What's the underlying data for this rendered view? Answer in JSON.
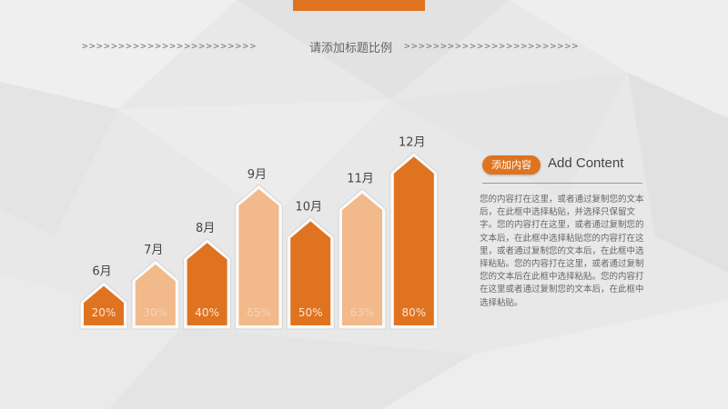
{
  "page": {
    "title": "请添加标题比例",
    "arrows_left": ">>>>>>>>>>>>>>>>>>>>>>>>",
    "arrows_right": ">>>>>>>>>>>>>>>>>>>>>>>>"
  },
  "colors": {
    "accent": "#e07320",
    "light": "#f2b98a",
    "background": "#e9e9e9"
  },
  "chart_data": {
    "type": "bar",
    "categories": [
      "6月",
      "7月",
      "8月",
      "9月",
      "10月",
      "11月",
      "12月"
    ],
    "values": [
      20,
      30,
      40,
      65,
      50,
      63,
      80
    ],
    "value_labels": [
      "20%",
      "30%",
      "40%",
      "65%",
      "50%",
      "63%",
      "80%"
    ],
    "bar_styles": [
      "dark",
      "light",
      "dark",
      "light",
      "dark",
      "light",
      "dark"
    ],
    "ylim": [
      0,
      100
    ],
    "grid": false,
    "legend": "none"
  },
  "side": {
    "badge": "添加内容",
    "heading": "Add Content",
    "text": "您的内容打在这里，或者通过复制您的文本后，在此框中选择粘贴，并选择只保留文字。您的内容打在这里，或者通过复制您的文本后，在此框中选择粘贴您的内容打在这里，或者通过复制您的文本后，在此框中选择粘贴。您的内容打在这里，或者通过复制您的文本后在此框中选择粘贴。您的内容打在这里或者通过复制您的文本后，在此框中选择粘贴。"
  }
}
